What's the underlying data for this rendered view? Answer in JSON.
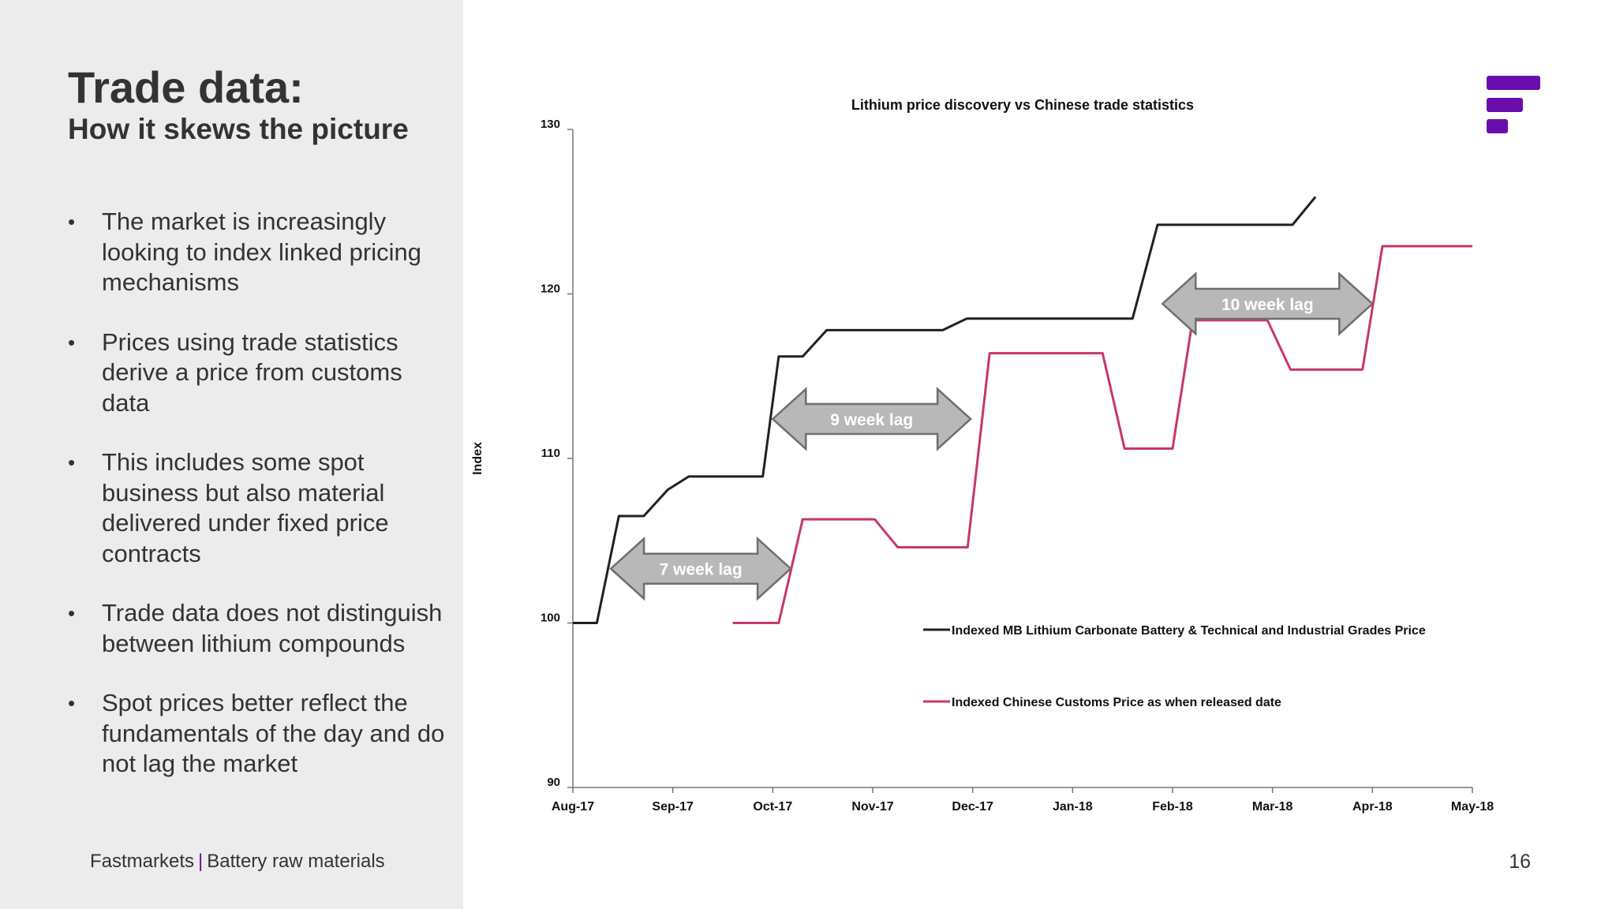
{
  "slide": {
    "title": "Trade data:",
    "subtitle": "How it skews the picture",
    "bullets": [
      "The market is increasingly looking to index linked pricing mechanisms",
      "Prices using trade statistics derive a price from customs data",
      "This includes some spot business but also material delivered under fixed price contracts",
      "Trade data does not distinguish between lithium compounds",
      "Spot prices better reflect the fundamentals of the day and do not lag the market"
    ],
    "bullet_symbol": "•",
    "footer_brand": "Fastmarkets",
    "footer_separator": "|",
    "footer_section": "Battery raw materials",
    "page_number": "16",
    "logo_icon": "fastmarkets-logo-icon",
    "colors": {
      "panel": "#ececec",
      "brand": "#6a0dad",
      "text": "#333333"
    }
  },
  "chart_data": {
    "type": "line",
    "title": "Lithium price discovery vs Chinese trade statistics",
    "ylabel": "Index",
    "xlabel": "",
    "ylim": [
      90,
      130
    ],
    "yticks": [
      90,
      100,
      110,
      120,
      130
    ],
    "xlim": [
      0,
      9
    ],
    "xtick_labels": [
      "Aug-17",
      "Sep-17",
      "Oct-17",
      "Nov-17",
      "Dec-17",
      "Jan-18",
      "Feb-18",
      "Mar-18",
      "Apr-18",
      "May-18"
    ],
    "grid": false,
    "legend_position": "lower-right",
    "series": [
      {
        "name": "Indexed MB Lithium Carbonate Battery & Technical and Industrial Grades Price",
        "color": "#231f20",
        "x": [
          0.0,
          0.24,
          0.46,
          0.71,
          0.95,
          1.16,
          1.9,
          2.06,
          2.3,
          2.54,
          3.7,
          3.94,
          5.6,
          5.85,
          7.2,
          7.43
        ],
        "y": [
          100.0,
          100.0,
          106.5,
          106.5,
          108.1,
          108.9,
          108.9,
          116.2,
          116.2,
          117.8,
          117.8,
          118.5,
          118.5,
          124.2,
          124.2,
          125.9
        ]
      },
      {
        "name": "Indexed Chinese Customs Price as when released date",
        "color": "#c8385f",
        "x": [
          1.6,
          2.06,
          2.3,
          3.02,
          3.25,
          3.95,
          4.17,
          5.3,
          5.52,
          6.0,
          6.2,
          6.95,
          7.18,
          7.9,
          8.1,
          9.0
        ],
        "y": [
          100.0,
          100.0,
          106.3,
          106.3,
          104.6,
          104.6,
          116.4,
          116.4,
          110.6,
          110.6,
          118.4,
          118.4,
          115.4,
          115.4,
          122.9,
          122.9
        ]
      }
    ],
    "annotations": [
      {
        "text": "7 week lag",
        "x_start": 0.38,
        "x_end": 2.18,
        "y": 103.3
      },
      {
        "text": "9 week lag",
        "x_start": 2.0,
        "x_end": 3.98,
        "y": 112.4
      },
      {
        "text": "10 week lag",
        "x_start": 5.9,
        "x_end": 8.0,
        "y": 119.4
      }
    ]
  }
}
